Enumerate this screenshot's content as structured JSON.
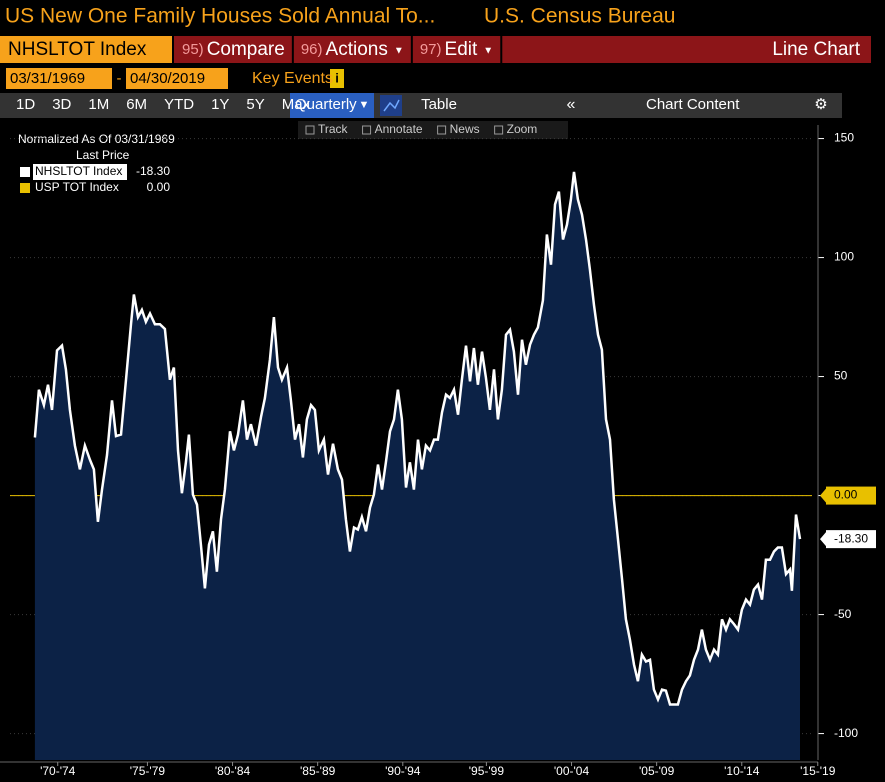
{
  "ui": {
    "title": "US New One Family Houses Sold Annual To...",
    "source": "U.S. Census Bureau",
    "ticker": "NHSLTOT Index",
    "menu": [
      {
        "num": "95)",
        "label": "Compare"
      },
      {
        "num": "96)",
        "label": "Actions"
      },
      {
        "num": "97)",
        "label": "Edit"
      }
    ],
    "chart_kind": "Line Chart",
    "start_date": "03/31/1969",
    "date_sep": "-",
    "end_date": "04/30/2019",
    "key_events": "Key Events",
    "periods": [
      "1D",
      "3D",
      "1M",
      "6M",
      "YTD",
      "1Y",
      "5Y",
      "Max"
    ],
    "frequency": "Quarterly",
    "table": "Table",
    "chart_content": "Chart Content",
    "tools": [
      "Track",
      "Annotate",
      "News",
      "Zoom"
    ]
  },
  "chart_data": {
    "type": "line",
    "legend_title": "Normalized As Of 03/31/1969",
    "legend_subtitle": "Last Price",
    "xlim": [
      1967.36,
      2020.12
    ],
    "ylim": [
      -111.1,
      155.7
    ],
    "yticks": [
      -100,
      -50,
      0,
      50,
      100,
      150
    ],
    "grid": true,
    "xticks": [
      {
        "value": 1970.5,
        "label": "'70-'74"
      },
      {
        "value": 1976.4,
        "label": "'75-'79"
      },
      {
        "value": 1982,
        "label": "'80-'84"
      },
      {
        "value": 1987.6,
        "label": "'85-'89"
      },
      {
        "value": 1993.2,
        "label": "'90-'94"
      },
      {
        "value": 1998.7,
        "label": "'95-'99"
      },
      {
        "value": 2004.3,
        "label": "'00-'04"
      },
      {
        "value": 2009.9,
        "label": "'05-'09"
      },
      {
        "value": 2015.5,
        "label": "'10-'14"
      },
      {
        "value": 2020.5,
        "label": "'15-'19"
      }
    ],
    "series": [
      {
        "name": "NHSLTOT Index",
        "color": "#ffffff",
        "last_label": "-18.30",
        "x": [
          1969.0,
          1969.26,
          1969.59,
          1969.86,
          1970.12,
          1970.45,
          1970.78,
          1971.04,
          1971.3,
          1971.63,
          1971.96,
          1972.29,
          1972.62,
          1972.88,
          1973.14,
          1973.41,
          1973.74,
          1974.07,
          1974.33,
          1974.66,
          1974.99,
          1975.32,
          1975.51,
          1975.78,
          1976.04,
          1976.3,
          1976.57,
          1976.89,
          1977.22,
          1977.55,
          1977.88,
          1978.14,
          1978.41,
          1978.67,
          1978.93,
          1979.13,
          1979.39,
          1979.66,
          1979.92,
          1980.18,
          1980.45,
          1980.71,
          1980.97,
          1981.24,
          1981.5,
          1981.83,
          1982.09,
          1982.36,
          1982.68,
          1982.95,
          1983.21,
          1983.54,
          1983.87,
          1984.13,
          1984.46,
          1984.72,
          1984.99,
          1985.25,
          1985.58,
          1985.84,
          1986.11,
          1986.37,
          1986.63,
          1986.89,
          1987.16,
          1987.42,
          1987.68,
          1988.01,
          1988.28,
          1988.61,
          1988.93,
          1989.2,
          1989.46,
          1989.72,
          1989.99,
          1990.25,
          1990.51,
          1990.78,
          1991.04,
          1991.3,
          1991.57,
          1991.83,
          1992.09,
          1992.36,
          1992.62,
          1992.88,
          1993.14,
          1993.41,
          1993.67,
          1993.93,
          1994.2,
          1994.46,
          1994.72,
          1994.99,
          1995.25,
          1995.51,
          1995.78,
          1996.04,
          1996.3,
          1996.57,
          1996.83,
          1997.09,
          1997.36,
          1997.62,
          1997.88,
          1998.14,
          1998.41,
          1998.67,
          1998.93,
          1999.2,
          1999.46,
          1999.72,
          1999.99,
          2000.25,
          2000.51,
          2000.78,
          2001.04,
          2001.3,
          2001.57,
          2001.83,
          2002.09,
          2002.42,
          2002.68,
          2002.95,
          2003.21,
          2003.47,
          2003.74,
          2004.0,
          2004.26,
          2004.46,
          2004.72,
          2004.99,
          2005.25,
          2005.51,
          2005.78,
          2006.04,
          2006.3,
          2006.57,
          2006.83,
          2007.09,
          2007.36,
          2007.62,
          2007.88,
          2008.14,
          2008.41,
          2008.67,
          2008.93,
          2009.2,
          2009.46,
          2009.72,
          2009.99,
          2010.25,
          2010.51,
          2010.78,
          2011.04,
          2011.3,
          2011.57,
          2011.83,
          2012.09,
          2012.36,
          2012.62,
          2012.88,
          2013.14,
          2013.41,
          2013.67,
          2013.93,
          2014.2,
          2014.46,
          2014.72,
          2014.99,
          2015.25,
          2015.51,
          2015.78,
          2016.04,
          2016.3,
          2016.57,
          2016.83,
          2017.09,
          2017.36,
          2017.62,
          2017.88,
          2018.14,
          2018.41,
          2018.67,
          2018.8,
          2019.07,
          2019.33
        ],
        "values": [
          24.4,
          44.5,
          38,
          46.6,
          36,
          61,
          63,
          53,
          36,
          21,
          11,
          21,
          15,
          11,
          -11,
          2.5,
          17,
          40,
          25,
          25.6,
          48.7,
          72,
          84.5,
          75,
          78,
          73,
          76.5,
          72,
          72,
          70,
          48.7,
          53.8,
          19,
          1,
          14,
          25.6,
          0.4,
          -3.8,
          -20.6,
          -39,
          -20.6,
          -15,
          -32,
          -10,
          2.5,
          27,
          19,
          25.6,
          40,
          23.5,
          30,
          21,
          33,
          41,
          57,
          75,
          53.8,
          48.7,
          53.8,
          40,
          23.5,
          30,
          16,
          32,
          38,
          36,
          19,
          23.5,
          8.8,
          21.8,
          11,
          6.7,
          -10,
          -23.5,
          -13.4,
          -14.3,
          -9,
          -15,
          -5,
          0.4,
          13,
          2.5,
          14,
          27,
          32,
          44.5,
          32,
          3.4,
          14,
          2.5,
          23.5,
          11,
          21,
          19,
          23.5,
          23.5,
          35,
          42.4,
          41,
          44.5,
          34,
          48.7,
          63,
          48,
          62,
          46.6,
          60.5,
          49.6,
          36,
          53,
          32,
          44.5,
          67.6,
          69.7,
          60.5,
          42.4,
          65.5,
          55,
          63.4,
          67.6,
          70.6,
          82,
          109.7,
          97,
          122.3,
          127.7,
          107.6,
          113.9,
          124.4,
          136,
          124.4,
          118,
          107.6,
          95,
          80,
          67.6,
          61.3,
          32,
          23.5,
          -1.7,
          -18.5,
          -35,
          -52,
          -60.5,
          -71,
          -78,
          -66.8,
          -69.7,
          -69,
          -81.5,
          -85.7,
          -81.5,
          -82,
          -87.8,
          -87.8,
          -87.8,
          -81.5,
          -78,
          -75.6,
          -69,
          -64.7,
          -56.3,
          -64.7,
          -69,
          -64.7,
          -66.8,
          -52,
          -56.3,
          -52,
          -54,
          -56.3,
          -47.9,
          -43.7,
          -45.8,
          -39.5,
          -37.4,
          -43.7,
          -27,
          -27,
          -23.5,
          -21.8,
          -21.8,
          -33,
          -31,
          -40,
          -8,
          -18.3
        ]
      },
      {
        "name": "USP TOT Index",
        "color": "#e8c000",
        "last_label": "0.00",
        "x": [
          1967.36,
          2020.12
        ],
        "values": [
          0,
          0
        ]
      }
    ]
  }
}
